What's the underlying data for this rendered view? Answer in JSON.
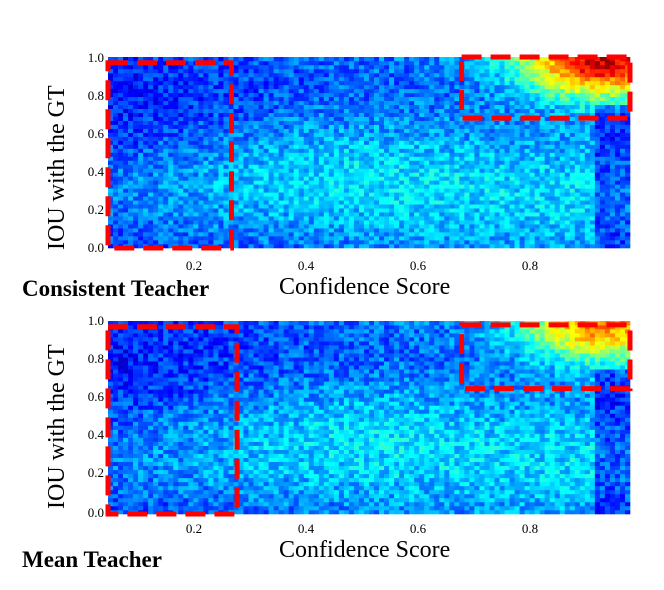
{
  "chart_data": [
    {
      "type": "heatmap",
      "name": "Consistent Teacher",
      "xlabel": "Confidence Score",
      "ylabel": "IOU with the GT",
      "xlim": [
        0.05,
        0.98
      ],
      "ylim": [
        0.0,
        1.0
      ],
      "xticks": [
        "0.2",
        "0.4",
        "0.6",
        "0.8"
      ],
      "yticks": [
        "0.0",
        "0.2",
        "0.4",
        "0.6",
        "0.8",
        "1.0"
      ],
      "grid": false,
      "colormap": "jet",
      "highlight_regions": [
        {
          "x": [
            0.05,
            0.27
          ],
          "y": [
            0.0,
            0.97
          ],
          "color": "#ff0000",
          "style": "dashed"
        },
        {
          "x": [
            0.68,
            0.98
          ],
          "y": [
            0.68,
            1.0
          ],
          "color": "#ff0000",
          "style": "dashed"
        }
      ],
      "density_description": "Dense high-IoU, high-confidence cluster in top-right; low confidence predictions sparse."
    },
    {
      "type": "heatmap",
      "name": "Mean Teacher",
      "xlabel": "Confidence Score",
      "ylabel": "IOU with the GT",
      "xlim": [
        0.05,
        0.98
      ],
      "ylim": [
        0.0,
        1.0
      ],
      "xticks": [
        "0.2",
        "0.4",
        "0.6",
        "0.8"
      ],
      "yticks": [
        "0.0",
        "0.2",
        "0.4",
        "0.6",
        "0.8",
        "1.0"
      ],
      "grid": false,
      "colormap": "jet",
      "highlight_regions": [
        {
          "x": [
            0.05,
            0.28
          ],
          "y": [
            0.0,
            0.97
          ],
          "color": "#ff0000",
          "style": "dashed"
        },
        {
          "x": [
            0.68,
            0.98
          ],
          "y": [
            0.65,
            0.98
          ],
          "color": "#ff0000",
          "style": "dashed"
        }
      ],
      "density_description": "Weaker high-IoU cluster in top-right; more spread of predictions."
    }
  ]
}
